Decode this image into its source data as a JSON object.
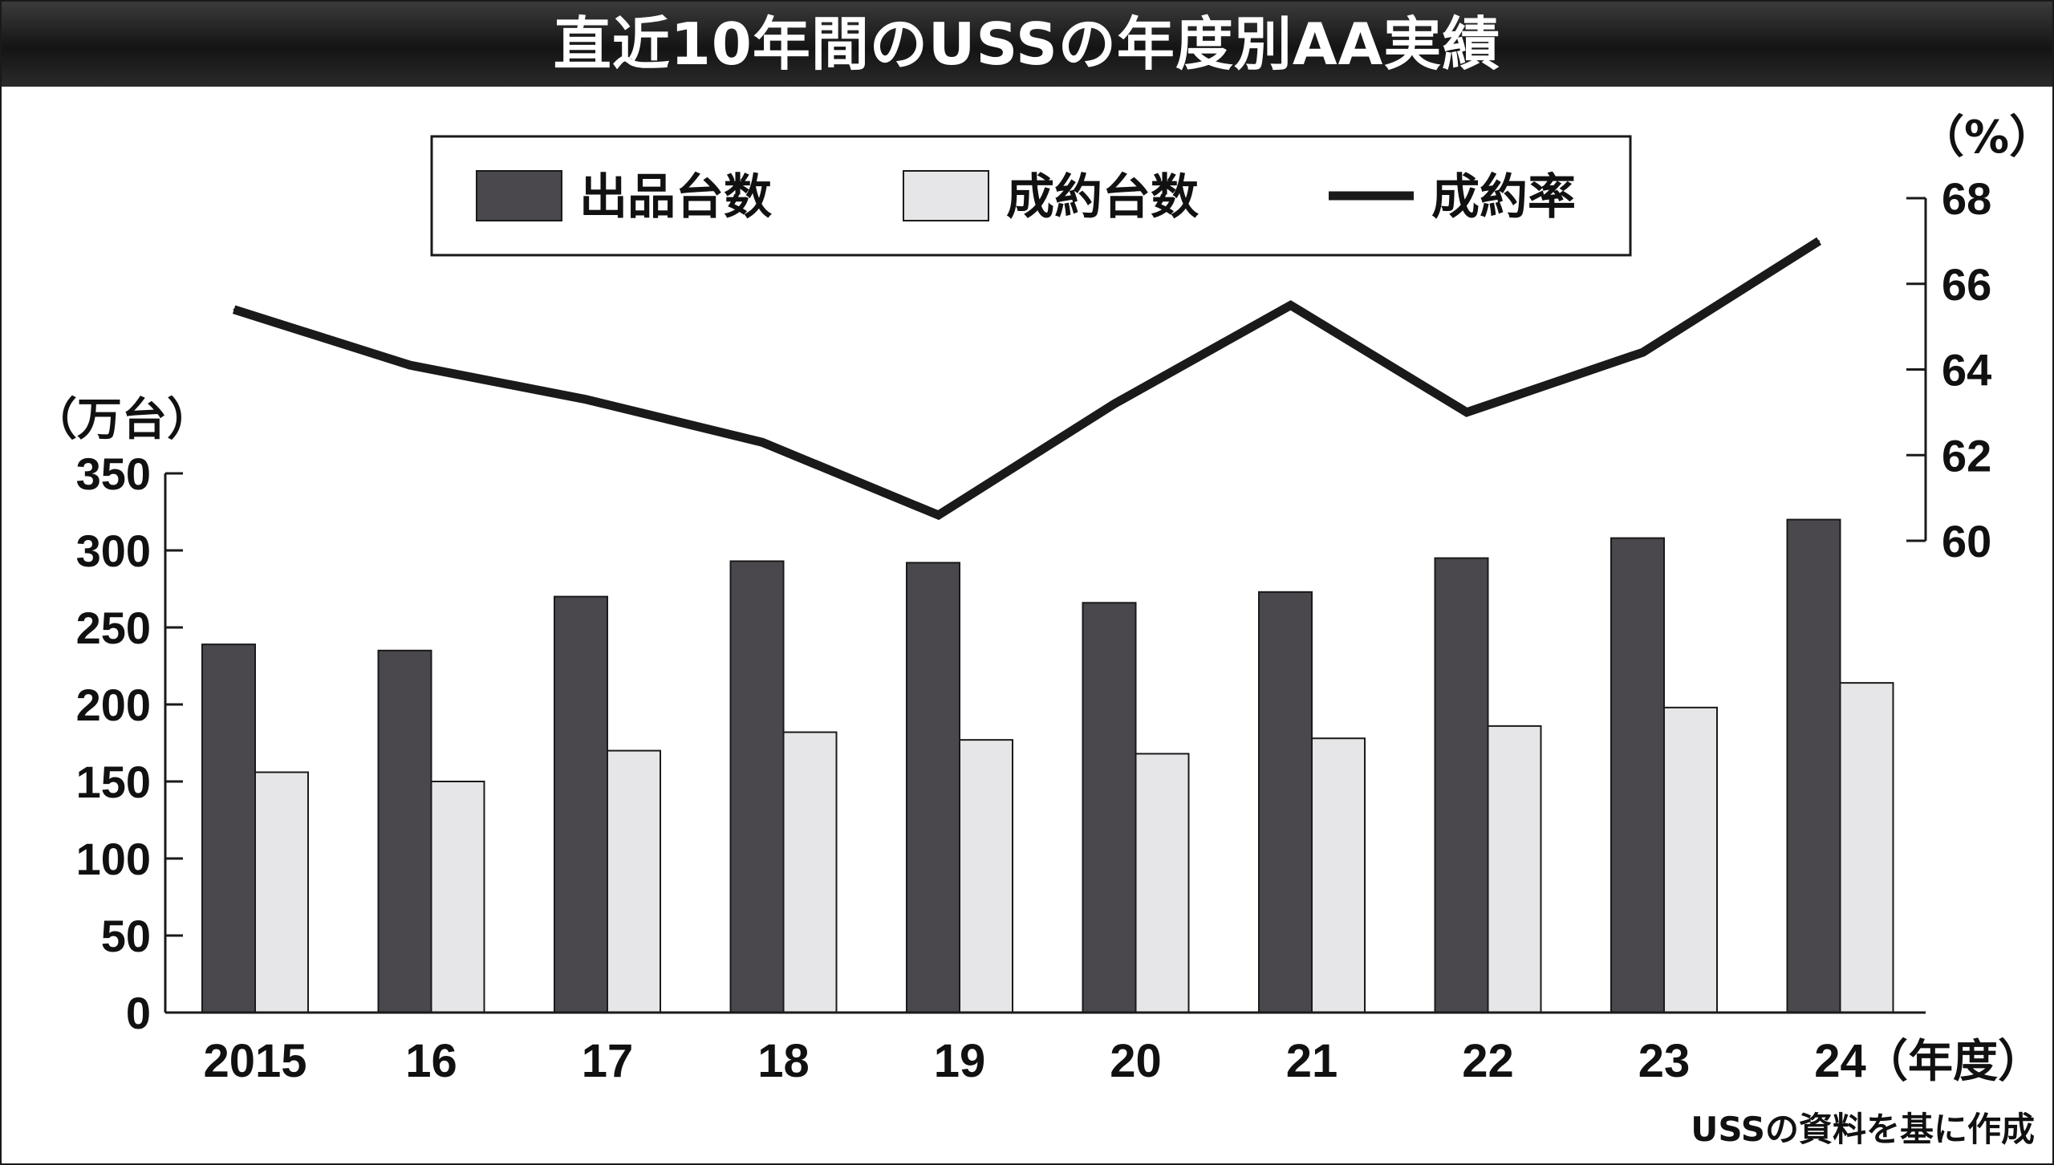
{
  "chart_data": {
    "type": "bar",
    "title": "直近10年間のUSSの年度別AA実績",
    "categories": [
      "2015",
      "16",
      "17",
      "18",
      "19",
      "20",
      "21",
      "22",
      "23",
      "24"
    ],
    "x_unit": "（年度）",
    "series": [
      {
        "name": "出品台数",
        "type": "bar",
        "axis": "left",
        "color": "#4a484c",
        "values": [
          239,
          235,
          270,
          293,
          292,
          266,
          273,
          295,
          308,
          320
        ]
      },
      {
        "name": "成約台数",
        "type": "bar",
        "axis": "left",
        "color": "#e6e6e8",
        "values": [
          156,
          150,
          170,
          182,
          177,
          168,
          178,
          186,
          198,
          214
        ]
      },
      {
        "name": "成約率",
        "type": "line",
        "axis": "right",
        "color": "#1a1a1a",
        "values": [
          65.4,
          64.1,
          63.3,
          62.3,
          60.6,
          63.2,
          65.5,
          63.0,
          64.4,
          67.0
        ]
      }
    ],
    "left_axis": {
      "unit": "（万台）",
      "ylim": [
        0,
        350
      ],
      "ticks": [
        "0",
        "50",
        "100",
        "150",
        "200",
        "250",
        "300",
        "350"
      ]
    },
    "right_axis": {
      "unit": "（%）",
      "ylim": [
        60,
        68
      ],
      "ticks": [
        "60",
        "62",
        "64",
        "66",
        "68"
      ]
    },
    "legend_position": "top-center",
    "grid": false,
    "source": "USSの資料を基に作成"
  },
  "colors": {
    "title_bar": "#222222",
    "axis": "#1a1a1a"
  }
}
